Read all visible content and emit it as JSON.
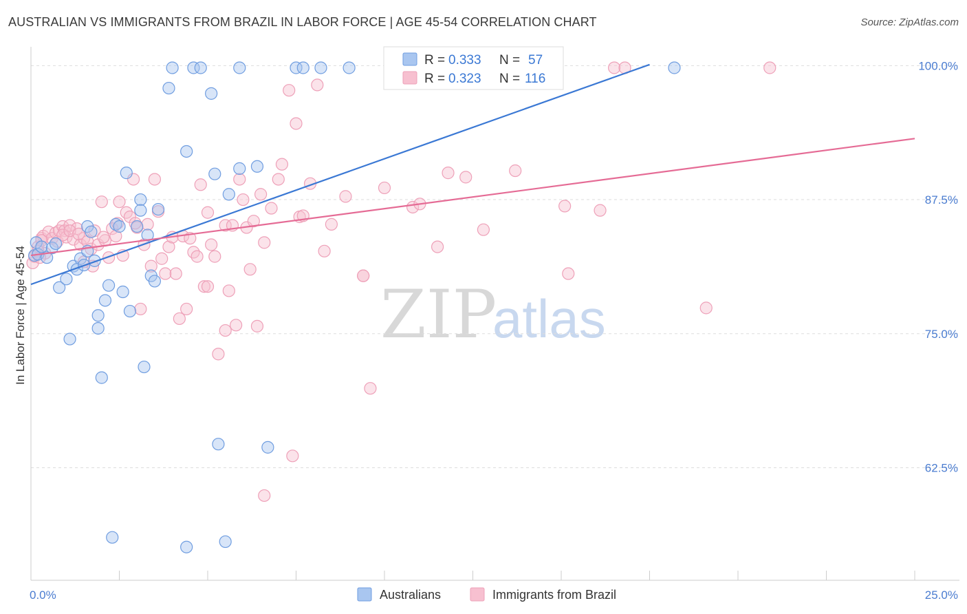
{
  "header": {
    "title": "AUSTRALIAN VS IMMIGRANTS FROM BRAZIL IN LABOR FORCE | AGE 45-54 CORRELATION CHART",
    "source": "Source: ZipAtlas.com"
  },
  "watermark": {
    "zip": "ZIP",
    "atlas": "atlas"
  },
  "legend": {
    "r_label": "R =",
    "n_label": "N =",
    "rows": [
      {
        "r": "0.333",
        "n": "57",
        "color": "#7aa5e6"
      },
      {
        "r": "0.323",
        "n": "116",
        "color": "#f09ab4"
      }
    ]
  },
  "bottom_legend": [
    "Australians",
    "Immigrants from Brazil"
  ],
  "colors": {
    "blue_fill": "#a9c6f0",
    "blue_stroke": "#6f9de0",
    "blue_line": "#3a78d4",
    "pink_fill": "#f7c0d0",
    "pink_stroke": "#eea0b8",
    "pink_line": "#e56b95",
    "tick_text": "#4a7cd0",
    "grid": "#dddddd"
  },
  "chart_data": {
    "type": "scatter",
    "title": "AUSTRALIAN VS IMMIGRANTS FROM BRAZIL IN LABOR FORCE | AGE 45-54 CORRELATION CHART",
    "xlabel": "",
    "ylabel": "In Labor Force | Age 45-54",
    "xlim": [
      0,
      25
    ],
    "ylim": [
      52,
      101.5
    ],
    "x_tick_labels": [
      "0.0%",
      "25.0%"
    ],
    "y_ticks": [
      {
        "value": 100.0,
        "label": "100.0%"
      },
      {
        "value": 87.5,
        "label": "87.5%"
      },
      {
        "value": 75.0,
        "label": "75.0%"
      },
      {
        "value": 62.5,
        "label": "62.5%"
      }
    ],
    "series": [
      {
        "name": "Australians",
        "R": 0.333,
        "N": 57,
        "trend": {
          "x": [
            0.0,
            17.5
          ],
          "y": [
            79.6,
            100.1
          ]
        },
        "points": [
          [
            0.1,
            82.3
          ],
          [
            0.15,
            83.5
          ],
          [
            0.2,
            82.4
          ],
          [
            0.3,
            83.1
          ],
          [
            0.45,
            82.1
          ],
          [
            0.6,
            83.0
          ],
          [
            0.7,
            83.4
          ],
          [
            0.8,
            79.3
          ],
          [
            1.0,
            80.1
          ],
          [
            1.1,
            74.5
          ],
          [
            1.2,
            81.3
          ],
          [
            1.3,
            81.0
          ],
          [
            1.4,
            82.0
          ],
          [
            1.5,
            81.4
          ],
          [
            1.6,
            82.7
          ],
          [
            1.6,
            85.0
          ],
          [
            1.7,
            84.5
          ],
          [
            1.8,
            81.8
          ],
          [
            1.9,
            75.5
          ],
          [
            1.9,
            76.7
          ],
          [
            2.0,
            70.9
          ],
          [
            2.1,
            78.1
          ],
          [
            2.2,
            79.5
          ],
          [
            2.3,
            56.0
          ],
          [
            2.4,
            85.2
          ],
          [
            2.5,
            85.0
          ],
          [
            2.6,
            78.9
          ],
          [
            2.7,
            90.0
          ],
          [
            2.8,
            77.1
          ],
          [
            3.0,
            85.0
          ],
          [
            3.1,
            87.5
          ],
          [
            3.1,
            86.5
          ],
          [
            3.2,
            71.9
          ],
          [
            3.3,
            84.2
          ],
          [
            3.4,
            80.4
          ],
          [
            3.5,
            79.9
          ],
          [
            3.6,
            86.6
          ],
          [
            3.9,
            97.9
          ],
          [
            4.0,
            99.8
          ],
          [
            4.4,
            55.1
          ],
          [
            4.4,
            92.0
          ],
          [
            4.6,
            99.8
          ],
          [
            4.8,
            99.8
          ],
          [
            5.1,
            97.4
          ],
          [
            5.2,
            89.9
          ],
          [
            5.3,
            64.7
          ],
          [
            5.5,
            55.6
          ],
          [
            5.6,
            88.0
          ],
          [
            5.9,
            90.4
          ],
          [
            5.9,
            99.8
          ],
          [
            6.4,
            90.6
          ],
          [
            6.7,
            64.4
          ],
          [
            7.5,
            99.8
          ],
          [
            7.7,
            99.8
          ],
          [
            8.2,
            99.8
          ],
          [
            9.0,
            99.8
          ],
          [
            18.2,
            99.8
          ]
        ]
      },
      {
        "name": "Immigrants from Brazil",
        "R": 0.323,
        "N": 116,
        "trend": {
          "x": [
            0.0,
            25.0
          ],
          "y": [
            82.3,
            93.2
          ]
        },
        "points": [
          [
            0.05,
            81.6
          ],
          [
            0.1,
            82.2
          ],
          [
            0.2,
            83.1
          ],
          [
            0.3,
            83.9
          ],
          [
            0.35,
            84.1
          ],
          [
            0.4,
            82.5
          ],
          [
            0.5,
            84.5
          ],
          [
            0.6,
            83.9
          ],
          [
            0.7,
            84.4
          ],
          [
            0.75,
            83.6
          ],
          [
            0.8,
            84.6
          ],
          [
            0.9,
            85.0
          ],
          [
            0.95,
            84.6
          ],
          [
            1.0,
            84.0
          ],
          [
            1.1,
            85.1
          ],
          [
            1.2,
            83.8
          ],
          [
            1.3,
            84.8
          ],
          [
            1.4,
            83.3
          ],
          [
            1.5,
            83.9
          ],
          [
            1.6,
            83.6
          ],
          [
            1.7,
            82.9
          ],
          [
            1.75,
            81.3
          ],
          [
            1.8,
            84.6
          ],
          [
            1.9,
            83.3
          ],
          [
            2.0,
            87.3
          ],
          [
            2.1,
            83.7
          ],
          [
            2.2,
            82.1
          ],
          [
            2.3,
            84.8
          ],
          [
            2.4,
            84.1
          ],
          [
            2.5,
            87.3
          ],
          [
            2.6,
            82.3
          ],
          [
            2.7,
            86.3
          ],
          [
            2.8,
            85.9
          ],
          [
            2.9,
            89.4
          ],
          [
            3.0,
            84.9
          ],
          [
            3.1,
            77.3
          ],
          [
            3.2,
            83.3
          ],
          [
            3.3,
            85.2
          ],
          [
            3.4,
            81.3
          ],
          [
            3.5,
            89.4
          ],
          [
            3.6,
            86.4
          ],
          [
            3.7,
            82.0
          ],
          [
            3.8,
            80.6
          ],
          [
            3.9,
            83.1
          ],
          [
            4.0,
            84.0
          ],
          [
            4.1,
            80.6
          ],
          [
            4.2,
            76.4
          ],
          [
            4.3,
            84.1
          ],
          [
            4.4,
            77.3
          ],
          [
            4.5,
            83.9
          ],
          [
            4.6,
            82.6
          ],
          [
            4.7,
            82.2
          ],
          [
            4.8,
            88.9
          ],
          [
            4.9,
            79.4
          ],
          [
            5.0,
            86.3
          ],
          [
            5.0,
            79.4
          ],
          [
            5.1,
            83.3
          ],
          [
            5.2,
            82.2
          ],
          [
            5.3,
            73.1
          ],
          [
            5.5,
            75.3
          ],
          [
            5.5,
            85.1
          ],
          [
            5.6,
            79.0
          ],
          [
            5.7,
            85.1
          ],
          [
            5.8,
            75.8
          ],
          [
            5.9,
            89.4
          ],
          [
            6.0,
            87.5
          ],
          [
            6.1,
            84.9
          ],
          [
            6.2,
            81.0
          ],
          [
            6.3,
            85.5
          ],
          [
            6.4,
            75.7
          ],
          [
            6.5,
            88.0
          ],
          [
            6.6,
            83.5
          ],
          [
            6.8,
            86.7
          ],
          [
            7.0,
            89.4
          ],
          [
            7.1,
            90.8
          ],
          [
            7.3,
            97.7
          ],
          [
            7.4,
            63.6
          ],
          [
            7.5,
            94.6
          ],
          [
            7.6,
            85.9
          ],
          [
            7.7,
            86.0
          ],
          [
            7.9,
            89.0
          ],
          [
            8.1,
            98.2
          ],
          [
            8.3,
            82.7
          ],
          [
            8.5,
            85.2
          ],
          [
            8.9,
            87.8
          ],
          [
            9.4,
            80.4
          ],
          [
            9.4,
            80.4
          ],
          [
            9.6,
            69.9
          ],
          [
            10.0,
            88.6
          ],
          [
            10.8,
            86.8
          ],
          [
            11.0,
            87.1
          ],
          [
            11.5,
            83.1
          ],
          [
            11.8,
            90.0
          ],
          [
            12.0,
            99.8
          ],
          [
            12.3,
            89.6
          ],
          [
            12.8,
            84.7
          ],
          [
            13.7,
            90.2
          ],
          [
            14.0,
            99.6
          ],
          [
            15.1,
            86.9
          ],
          [
            15.2,
            80.6
          ],
          [
            16.1,
            86.5
          ],
          [
            16.5,
            99.8
          ],
          [
            16.8,
            99.8
          ],
          [
            19.1,
            77.4
          ],
          [
            20.9,
            99.8
          ],
          [
            6.6,
            59.9
          ],
          [
            1.5,
            81.7
          ],
          [
            0.2,
            82.7
          ],
          [
            0.25,
            82.1
          ],
          [
            0.3,
            83.7
          ],
          [
            0.9,
            84.2
          ],
          [
            1.1,
            84.6
          ],
          [
            1.35,
            84.3
          ],
          [
            2.05,
            84.0
          ],
          [
            2.45,
            85.3
          ],
          [
            2.95,
            85.3
          ]
        ]
      }
    ]
  }
}
